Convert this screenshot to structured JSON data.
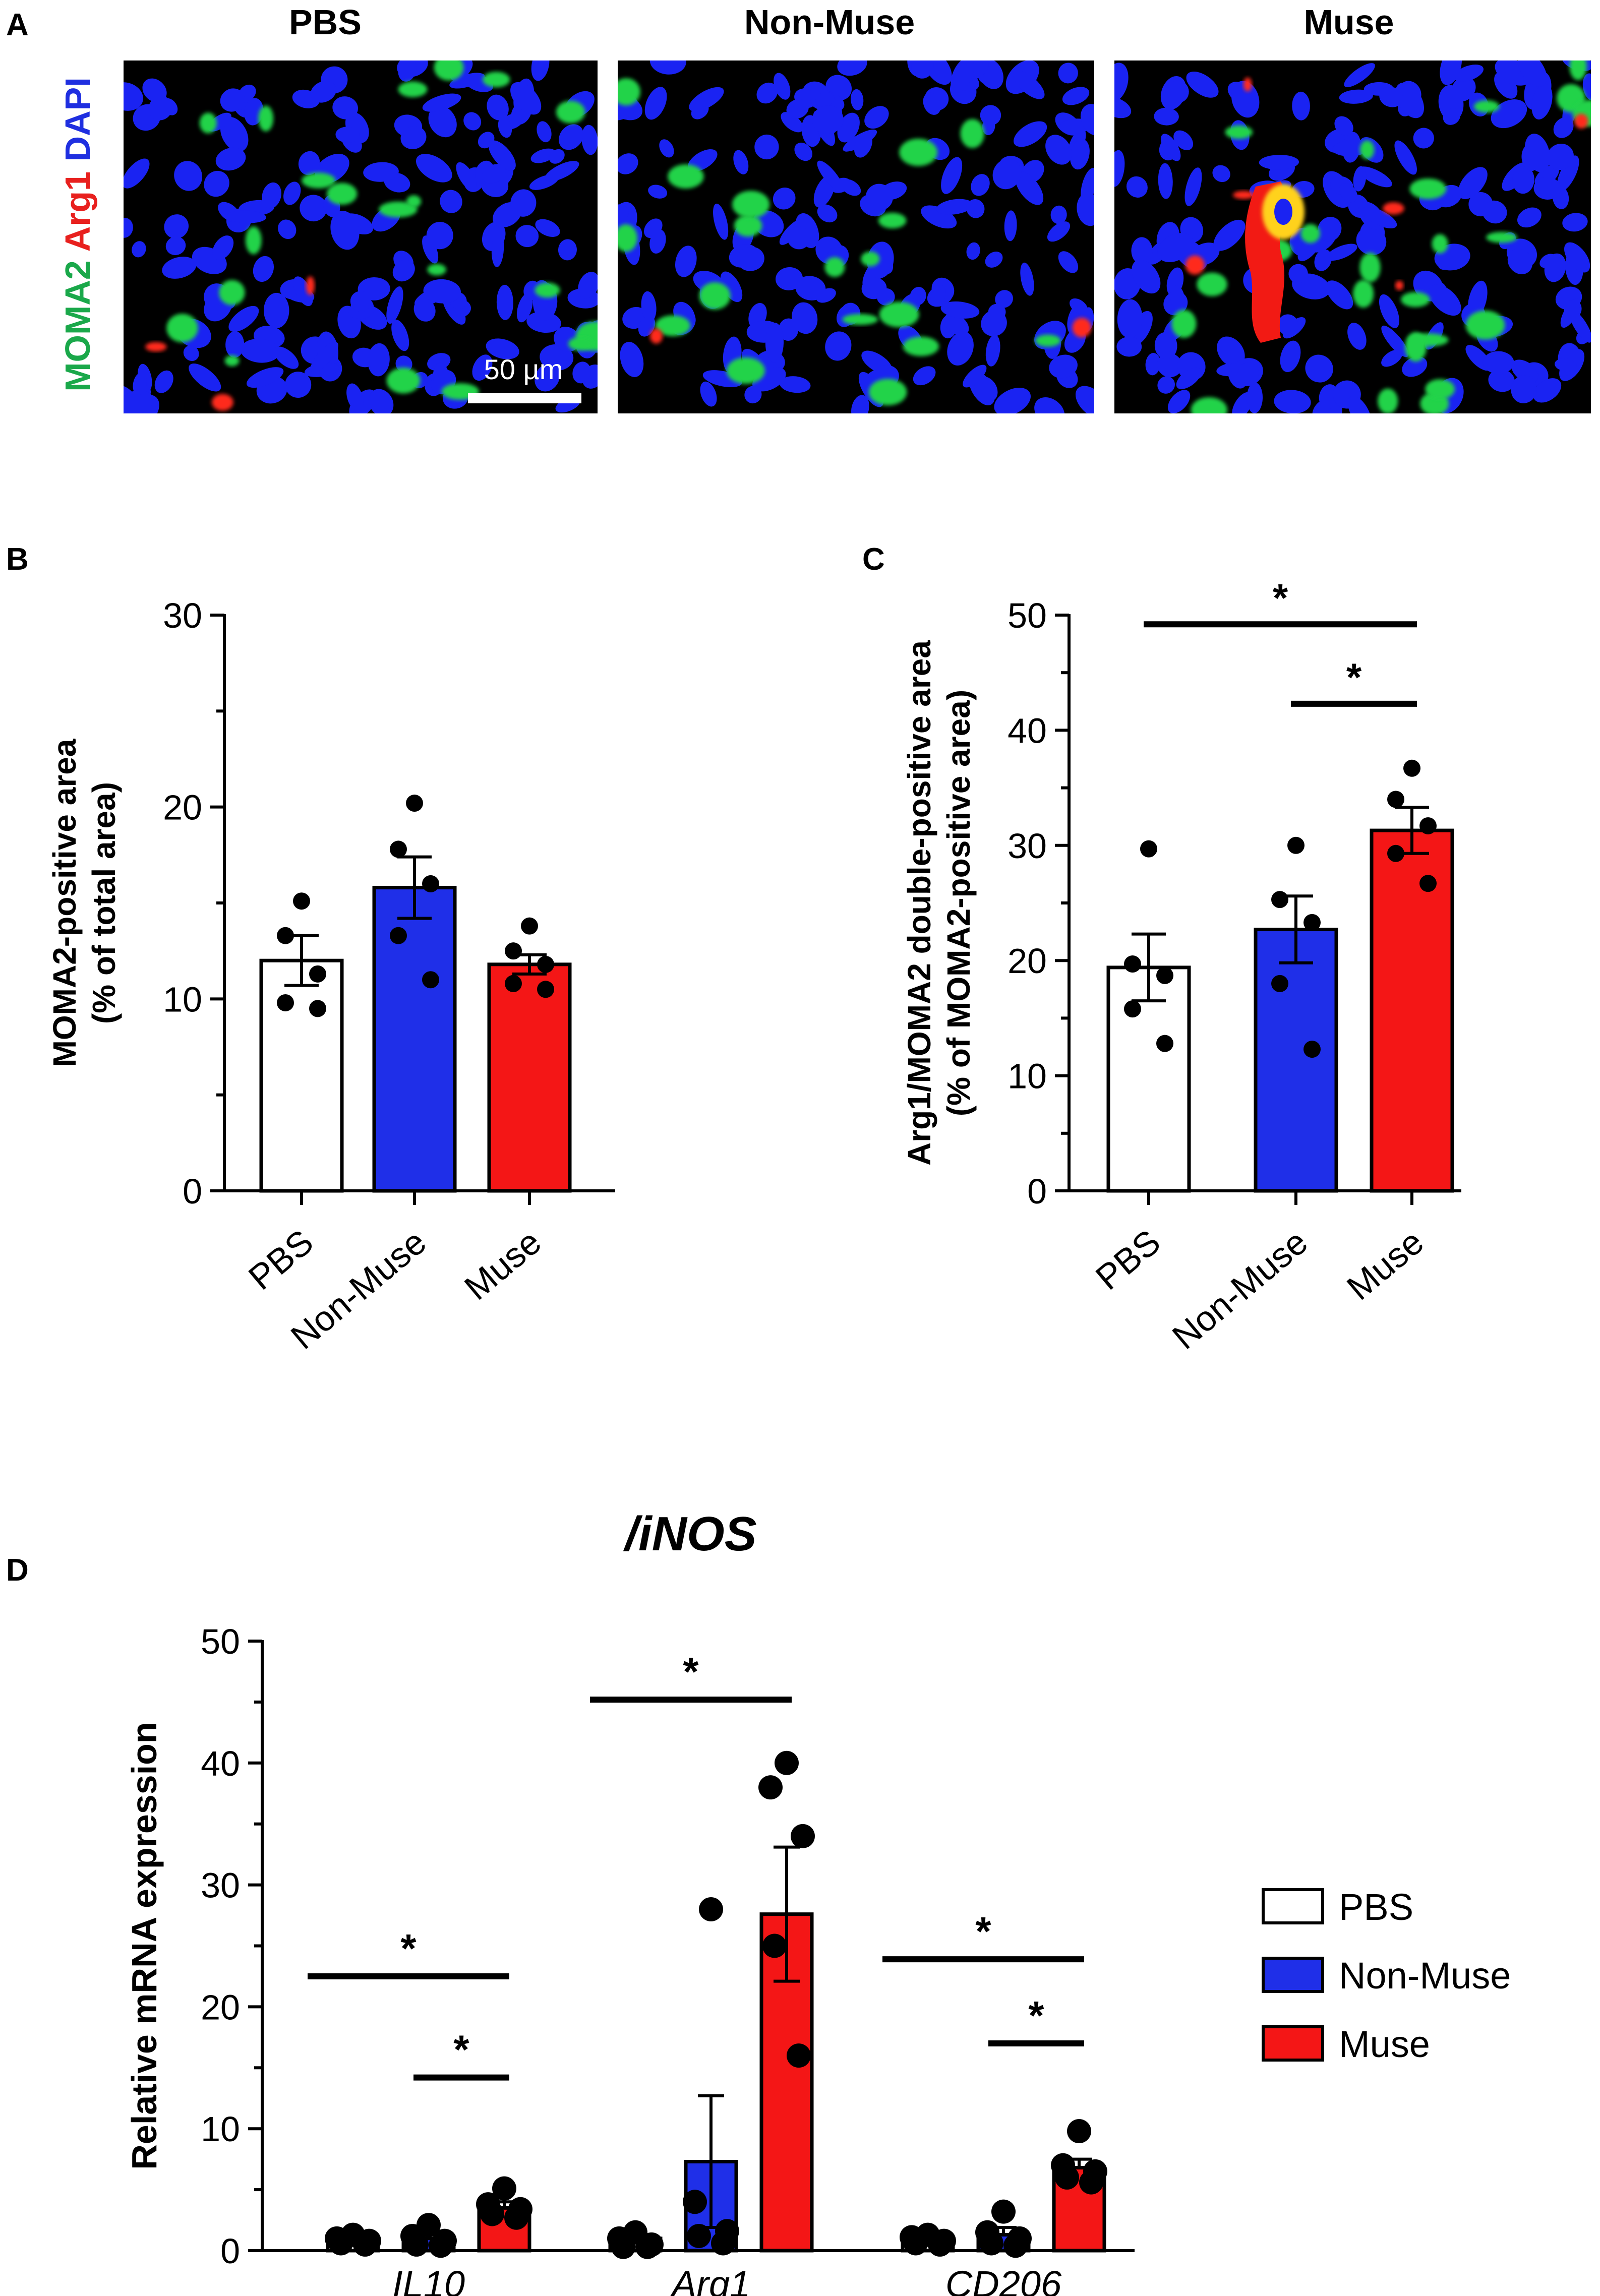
{
  "panelA": {
    "label": "A",
    "column_titles": [
      "PBS",
      "Non-Muse",
      "Muse"
    ],
    "stain_labels": [
      {
        "text": "MOMA2",
        "color": "#1aa84a"
      },
      {
        "text": "Arg1",
        "color": "#e8201e"
      },
      {
        "text": "DAPI",
        "color": "#1f2fe0"
      }
    ],
    "scale_bar_label": "50 µm"
  },
  "colors": {
    "PBS": "#ffffff",
    "Non-Muse": "#1f2fe8",
    "Muse": "#f41616"
  },
  "chart_data": [
    {
      "panel": "B",
      "type": "bar",
      "categories": [
        "PBS",
        "Non-Muse",
        "Muse"
      ],
      "values": [
        12.0,
        15.8,
        11.8
      ],
      "sem": [
        1.3,
        1.6,
        0.5
      ],
      "points": [
        [
          15.1,
          13.3,
          11.3,
          9.8,
          9.5
        ],
        [
          20.2,
          17.8,
          16.0,
          13.3,
          11.0
        ],
        [
          13.8,
          12.5,
          11.8,
          10.8,
          10.5
        ]
      ],
      "ylabel_lines": [
        "MOMA2-positive area",
        "(% of total area)"
      ],
      "ylim": [
        0,
        30
      ],
      "yticks": [
        0,
        10,
        20,
        30
      ],
      "significance": []
    },
    {
      "panel": "C",
      "type": "bar",
      "categories": [
        "PBS",
        "Non-Muse",
        "Muse"
      ],
      "values": [
        19.4,
        22.7,
        31.3
      ],
      "sem": [
        2.9,
        2.9,
        2.0
      ],
      "points": [
        [
          29.7,
          19.7,
          18.7,
          15.8,
          12.8
        ],
        [
          30.0,
          25.3,
          23.3,
          18.0,
          12.3
        ],
        [
          36.7,
          34.0,
          31.7,
          29.3,
          26.7
        ]
      ],
      "ylabel_lines": [
        "Arg1/MOMA2 double-positive area",
        "(% of MOMA2-positive area)"
      ],
      "ylim": [
        0,
        50
      ],
      "yticks": [
        0,
        10,
        20,
        30,
        40,
        50
      ],
      "significance": [
        {
          "from": "PBS",
          "to": "Muse",
          "label": "*",
          "y": 49.2
        },
        {
          "from": "Non-Muse",
          "to": "Muse",
          "label": "*",
          "y": 42.3
        }
      ]
    },
    {
      "panel": "D",
      "type": "bar",
      "title": "/iNOS",
      "groups": [
        "IL10",
        "Arg1",
        "CD206"
      ],
      "series": [
        {
          "name": "PBS",
          "values": [
            1.0,
            1.0,
            1.0
          ],
          "sem": [
            0.2,
            0.3,
            0.2
          ],
          "points": [
            [
              1.3,
              1.0,
              0.8,
              0.6,
              0.5
            ],
            [
              1.5,
              1.0,
              0.5,
              0.3,
              0.3
            ],
            [
              1.3,
              1.1,
              0.8,
              0.6,
              0.5
            ]
          ]
        },
        {
          "name": "Non-Muse",
          "values": [
            1.0,
            7.3,
            1.3
          ],
          "sem": [
            0.4,
            5.4,
            0.6
          ],
          "points": [
            [
              2.1,
              1.2,
              0.8,
              0.5,
              0.4
            ],
            [
              28.0,
              4.0,
              1.6,
              1.2,
              0.6
            ],
            [
              3.2,
              1.5,
              1.0,
              0.6,
              0.4
            ]
          ]
        },
        {
          "name": "Muse",
          "values": [
            3.5,
            27.6,
            6.8
          ],
          "sem": [
            0.5,
            5.5,
            0.7
          ],
          "points": [
            [
              5.1,
              3.8,
              3.4,
              3.0,
              2.7
            ],
            [
              40.0,
              38.0,
              34.0,
              25.0,
              16.0
            ],
            [
              9.8,
              7.0,
              6.5,
              6.0,
              5.6
            ]
          ]
        }
      ],
      "ylabel": "Relative mRNA expression",
      "ylim": [
        0,
        50
      ],
      "yticks": [
        0,
        10,
        20,
        30,
        40,
        50
      ],
      "significance": [
        {
          "group": "IL10",
          "from": "PBS",
          "to": "Muse",
          "label": "*",
          "y": 22.5
        },
        {
          "group": "IL10",
          "from": "Non-Muse",
          "to": "Muse",
          "label": "*",
          "y": 14.2
        },
        {
          "group": "Arg1",
          "from": "PBS",
          "to": "Muse",
          "label": "*",
          "y": 45.2
        },
        {
          "group": "CD206",
          "from": "PBS",
          "to": "Muse",
          "label": "*",
          "y": 23.9
        },
        {
          "group": "CD206",
          "from": "Non-Muse",
          "to": "Muse",
          "label": "*",
          "y": 17.0
        }
      ],
      "legend": {
        "placement": "right",
        "entries": [
          "PBS",
          "Non-Muse",
          "Muse"
        ]
      }
    }
  ]
}
